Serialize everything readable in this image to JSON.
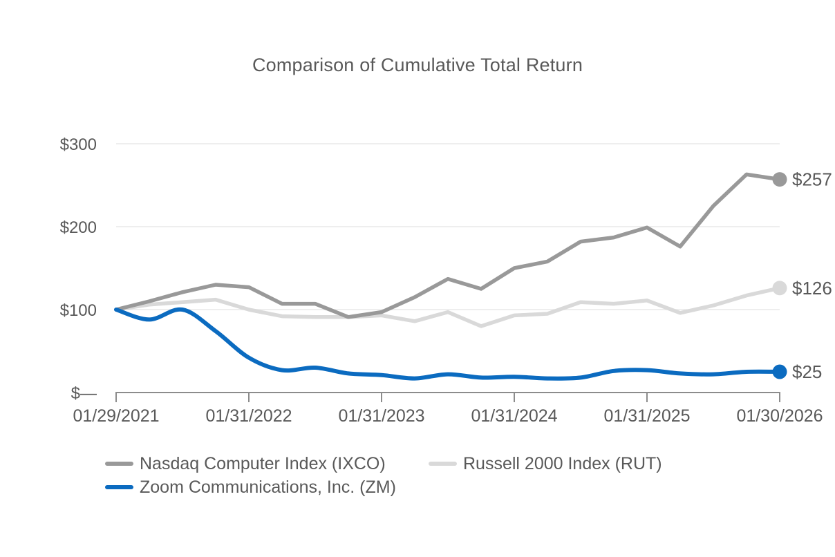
{
  "chart_data": {
    "type": "line",
    "title": "Comparison of Cumulative Total Return",
    "x_tick_labels": [
      "01/29/2021",
      "01/31/2022",
      "01/31/2023",
      "01/31/2024",
      "01/31/2025",
      "01/30/2026"
    ],
    "x_sampling": "quarterly (4 points per year, 21 points total)",
    "y_ticks": [
      {
        "label": "$300",
        "value": 300
      },
      {
        "label": "$200",
        "value": 200
      },
      {
        "label": "$100",
        "value": 100
      },
      {
        "label": "$—",
        "value": 0
      }
    ],
    "ylim": [
      0,
      300
    ],
    "grid": "horizontal",
    "legend_position": "bottom-left-two-rows",
    "colors": {
      "text": "#595959",
      "gridline": "#E8E8E8",
      "axis": "#8C8C8C"
    },
    "series": [
      {
        "id": "ixco",
        "name": "Nasdaq Computer Index (IXCO)",
        "color": "#999999",
        "end_label": "$257",
        "smooth": false,
        "values": [
          100,
          110,
          121,
          130,
          127,
          107,
          107,
          91,
          97,
          115,
          137,
          125,
          150,
          158,
          182,
          187,
          199,
          176,
          225,
          263,
          257
        ]
      },
      {
        "id": "rut",
        "name": "Russell 2000 Index (RUT)",
        "color": "#D9D9D9",
        "end_label": "$126",
        "smooth": false,
        "values": [
          100,
          106,
          109,
          112,
          100,
          92,
          91,
          91,
          93,
          86,
          97,
          80,
          93,
          95,
          109,
          107,
          111,
          96,
          105,
          117,
          126
        ]
      },
      {
        "id": "zm",
        "name": "Zoom Communications, Inc. (ZM)",
        "color": "#0B6BC0",
        "end_label": "$25",
        "smooth": true,
        "values": [
          100,
          88,
          100,
          74,
          42,
          27,
          30,
          23,
          21,
          17,
          22,
          18,
          19,
          17,
          18,
          26,
          27,
          23,
          22,
          25,
          25
        ]
      }
    ]
  }
}
